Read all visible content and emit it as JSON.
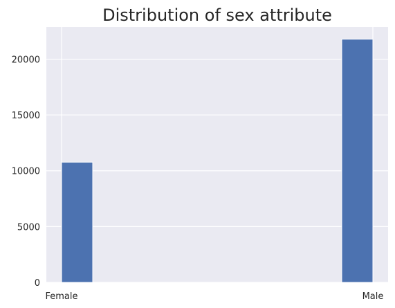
{
  "chart_data": {
    "type": "bar",
    "title": "Distribution of sex attribute",
    "xlabel": "",
    "ylabel": "",
    "categories": [
      "Female",
      "Male"
    ],
    "values": [
      10771,
      21790
    ],
    "ylim": [
      0,
      22880
    ],
    "yticks": [
      0,
      5000,
      10000,
      15000,
      20000
    ],
    "xticks": [
      "Female",
      "Male"
    ],
    "grid": true,
    "legend": "none",
    "colors": {
      "bar": "#4c72b0",
      "bar_edge": "#ffffff",
      "plot_background": "#eaeaf2",
      "grid": "#ffffff",
      "text": "#262626"
    }
  }
}
